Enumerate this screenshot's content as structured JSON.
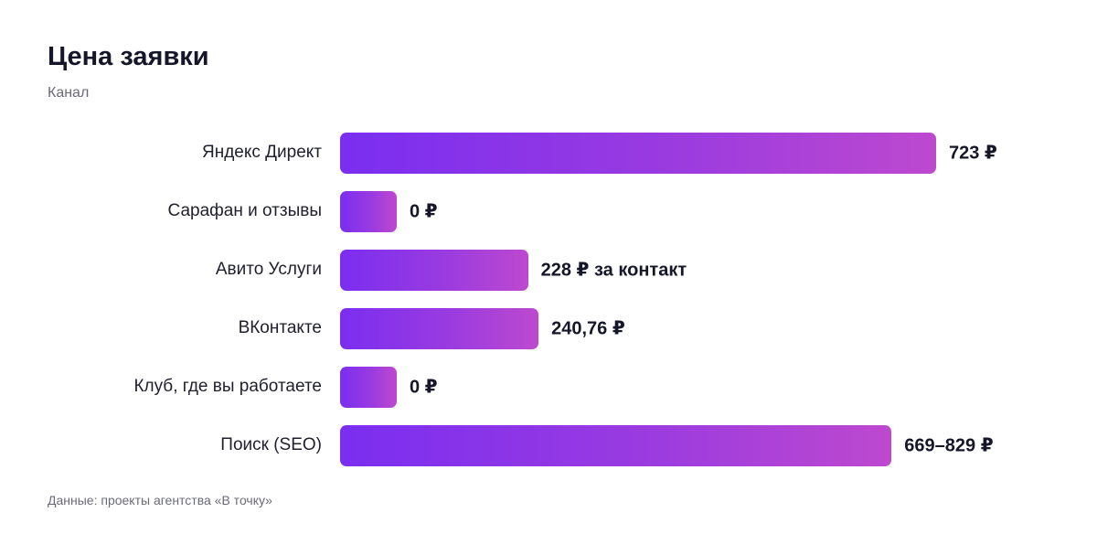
{
  "chart_data": {
    "type": "bar",
    "orientation": "horizontal",
    "title": "Цена заявки",
    "subtitle": "Канал",
    "categories": [
      "Яндекс Директ",
      "Сарафан и отзывы",
      "Авито Услуги",
      "ВКонтакте",
      "Клуб, где вы работаете",
      "Поиск (SEO)"
    ],
    "values": [
      723,
      0,
      228,
      240.76,
      0,
      669
    ],
    "value_labels": [
      "723 ₽",
      "0 ₽",
      "228 ₽ за контакт",
      "240,76 ₽",
      "0 ₽",
      "669–829 ₽"
    ],
    "xlim": [
      0,
      723
    ],
    "grid": false,
    "legend": "none",
    "bar_gradient": [
      "#7a2ef0",
      "#bd49cf"
    ],
    "source": "Данные: проекты агентства «В точку»"
  }
}
